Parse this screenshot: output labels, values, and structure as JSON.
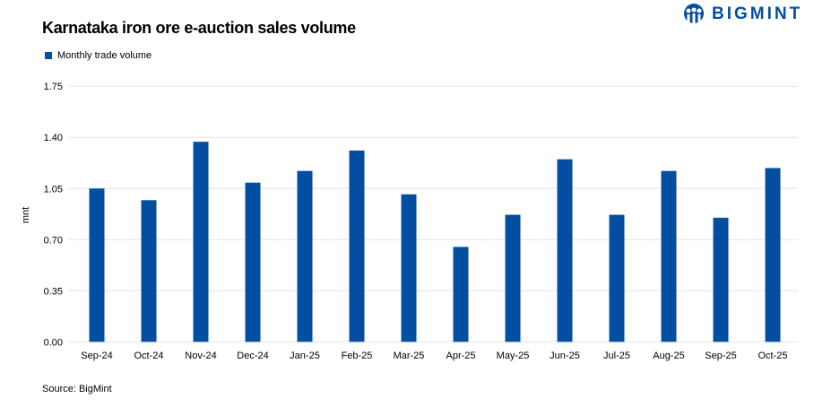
{
  "brand": {
    "name": "BIGMINT",
    "color": "#044ea1"
  },
  "source": "Source: BigMint",
  "chart_data": {
    "type": "bar",
    "title": "Karnataka iron ore e-auction sales volume",
    "xlabel": "",
    "ylabel": "mnt",
    "ylim": [
      0,
      1.75
    ],
    "yticks": [
      "0.00",
      "0.35",
      "0.70",
      "1.05",
      "1.40",
      "1.75"
    ],
    "grid": true,
    "legend_position": "top-left",
    "categories": [
      "Sep-24",
      "Oct-24",
      "Nov-24",
      "Dec-24",
      "Jan-25",
      "Feb-25",
      "Mar-25",
      "Apr-25",
      "May-25",
      "Jun-25",
      "Jul-25",
      "Aug-25",
      "Sep-25",
      "Oct-25"
    ],
    "series": [
      {
        "name": "Monthly trade volume",
        "color": "#044ea1",
        "values": [
          1.05,
          0.97,
          1.37,
          1.09,
          1.17,
          1.31,
          1.01,
          0.65,
          0.87,
          1.25,
          0.87,
          1.17,
          0.85,
          1.19
        ]
      }
    ]
  }
}
